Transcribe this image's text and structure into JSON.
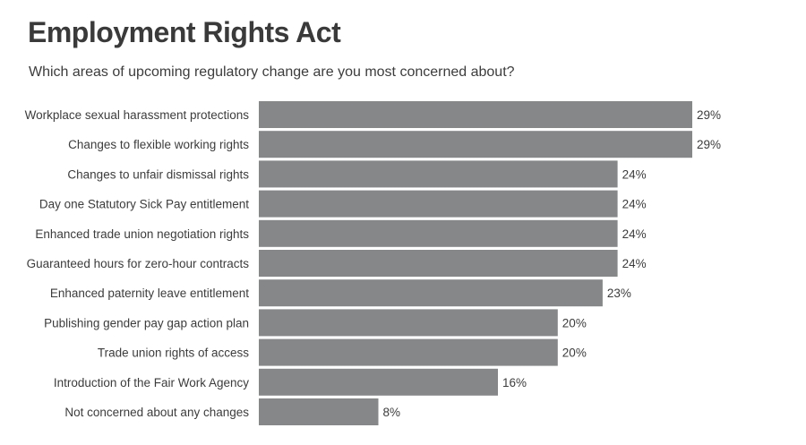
{
  "chart_data": {
    "type": "bar",
    "orientation": "horizontal",
    "title": "Employment Rights Act",
    "subtitle": "Which areas of upcoming regulatory change are you most concerned about?",
    "categories": [
      "Workplace sexual harassment protections",
      "Changes to flexible working rights",
      "Changes to unfair dismissal rights",
      "Day one Statutory Sick Pay entitlement",
      "Enhanced trade union negotiation rights",
      "Guaranteed hours for zero-hour contracts",
      "Enhanced paternity leave entitlement",
      "Publishing gender pay gap action plan",
      "Trade union rights of access",
      "Introduction of the Fair Work Agency",
      "Not concerned about any changes"
    ],
    "values": [
      29,
      29,
      24,
      24,
      24,
      24,
      23,
      20,
      20,
      16,
      8
    ],
    "value_labels": [
      "29%",
      "29%",
      "24%",
      "24%",
      "24%",
      "24%",
      "23%",
      "20%",
      "20%",
      "16%",
      "8%"
    ],
    "unit": "%",
    "xlim": [
      0,
      29
    ],
    "grid": false,
    "legend": "none",
    "bar_color": "#858789"
  }
}
